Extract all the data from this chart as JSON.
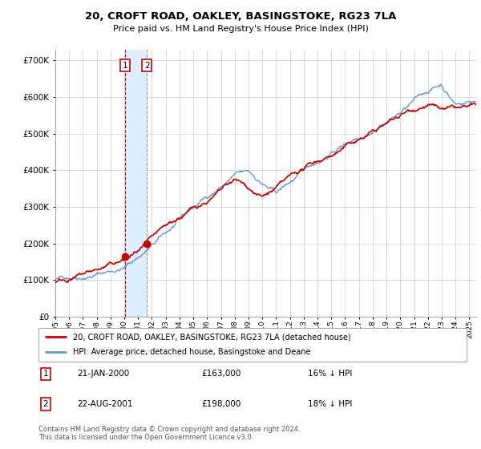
{
  "title": "20, CROFT ROAD, OAKLEY, BASINGSTOKE, RG23 7LA",
  "subtitle": "Price paid vs. HM Land Registry's House Price Index (HPI)",
  "legend_label_red": "20, CROFT ROAD, OAKLEY, BASINGSTOKE, RG23 7LA (detached house)",
  "legend_label_blue": "HPI: Average price, detached house, Basingstoke and Deane",
  "footer": "Contains HM Land Registry data © Crown copyright and database right 2024.\nThis data is licensed under the Open Government Licence v3.0.",
  "annotation1_date": "21-JAN-2000",
  "annotation1_price": "£163,000",
  "annotation1_hpi": "16% ↓ HPI",
  "annotation2_date": "22-AUG-2001",
  "annotation2_price": "£198,000",
  "annotation2_hpi": "18% ↓ HPI",
  "red_color": "#cc0000",
  "blue_color": "#6699cc",
  "annotation_box_color": "#cc0000",
  "vline1_color": "#cc0000",
  "vline2_color": "#8899bb",
  "shade_color": "#ddeeff",
  "grid_color": "#cccccc",
  "point1_x": 2000.055,
  "point1_y": 163000,
  "point2_x": 2001.644,
  "point2_y": 198000,
  "ylim": [
    0,
    730000
  ],
  "xlim": [
    1995.0,
    2025.5
  ],
  "x_ticks": [
    1995,
    1996,
    1997,
    1998,
    1999,
    2000,
    2001,
    2002,
    2003,
    2004,
    2005,
    2006,
    2007,
    2008,
    2009,
    2010,
    2011,
    2012,
    2013,
    2014,
    2015,
    2016,
    2017,
    2018,
    2019,
    2020,
    2021,
    2022,
    2023,
    2024,
    2025
  ],
  "y_ticks": [
    0,
    100000,
    200000,
    300000,
    400000,
    500000,
    600000,
    700000
  ]
}
